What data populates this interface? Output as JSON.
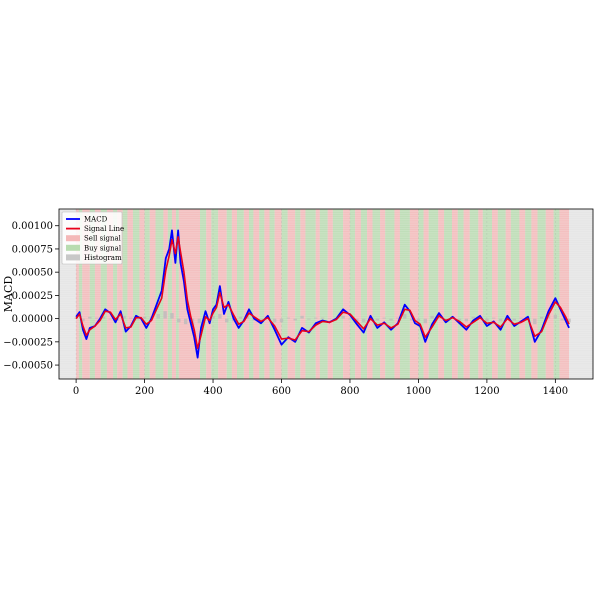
{
  "chart_data": {
    "type": "line",
    "title": "",
    "xlabel": "",
    "ylabel": "MACD",
    "xlim": [
      -50,
      1510
    ],
    "ylim": [
      -0.00065,
      0.00118
    ],
    "x_ticks": [
      0,
      200,
      400,
      600,
      800,
      1000,
      1200,
      1400
    ],
    "x_tick_labels": [
      "0",
      "200",
      "400",
      "600",
      "800",
      "1000",
      "1200",
      "1400"
    ],
    "y_ticks": [
      -0.0005,
      -0.00025,
      0.0,
      0.00025,
      0.0005,
      0.00075,
      0.001
    ],
    "y_tick_labels": [
      "−0.00050",
      "−0.00025",
      "0.00000",
      "0.00025",
      "0.00050",
      "0.00075",
      "0.00100"
    ],
    "grid": true,
    "legend_position": "top-left",
    "legend": [
      {
        "label": "MACD",
        "kind": "line",
        "color": "#0000ff"
      },
      {
        "label": "Signal Line",
        "kind": "line",
        "color": "#e8001c"
      },
      {
        "label": "Sell signal",
        "kind": "patch",
        "color": "#f4b8b8"
      },
      {
        "label": "Buy signal",
        "kind": "patch",
        "color": "#b8dcb0"
      },
      {
        "label": "Histogram",
        "kind": "patch",
        "color": "#c8c8c8"
      }
    ],
    "colors": {
      "macd": "#0000ff",
      "signal": "#e8001c",
      "sell": "#f4b8b8",
      "buy": "#b8dcb0",
      "histogram": "#bcbcbc",
      "outside": "#e6e6e6"
    },
    "data_range": [
      0,
      1440
    ],
    "series": [
      {
        "name": "MACD",
        "x": [
          0,
          10,
          20,
          30,
          40,
          55,
          70,
          85,
          100,
          115,
          130,
          145,
          160,
          175,
          190,
          205,
          220,
          235,
          250,
          262,
          272,
          280,
          290,
          298,
          305,
          315,
          325,
          335,
          345,
          355,
          365,
          378,
          390,
          400,
          410,
          420,
          432,
          445,
          460,
          475,
          490,
          505,
          520,
          540,
          560,
          580,
          600,
          620,
          640,
          660,
          680,
          700,
          720,
          740,
          760,
          780,
          800,
          820,
          840,
          860,
          880,
          900,
          920,
          940,
          960,
          975,
          990,
          1005,
          1020,
          1040,
          1060,
          1080,
          1100,
          1120,
          1140,
          1160,
          1180,
          1200,
          1220,
          1240,
          1260,
          1280,
          1300,
          1320,
          1340,
          1360,
          1380,
          1400,
          1415,
          1430,
          1440
        ],
        "values": [
          2e-05,
          7e-05,
          -0.00012,
          -0.00022,
          -0.0001,
          -8e-05,
          0.0,
          0.0001,
          6e-05,
          -4e-05,
          8e-05,
          -0.00014,
          -8e-05,
          3e-05,
          0.0,
          -0.0001,
          0.0,
          0.00015,
          0.0003,
          0.00065,
          0.00075,
          0.00095,
          0.0006,
          0.00095,
          0.0006,
          0.0004,
          0.0001,
          -5e-05,
          -0.0002,
          -0.00042,
          -0.0001,
          8e-05,
          -5e-05,
          0.0001,
          0.00015,
          0.00035,
          5e-05,
          0.00018,
          0.0,
          -0.0001,
          -2e-05,
          0.0001,
          0.0,
          -5e-05,
          3e-05,
          -0.00012,
          -0.00028,
          -0.0002,
          -0.00025,
          -0.0001,
          -0.00015,
          -5e-05,
          -2e-05,
          -4e-05,
          0.0,
          0.0001,
          4e-05,
          -6e-05,
          -0.00015,
          3e-05,
          -0.0001,
          -4e-05,
          -0.00012,
          -5e-05,
          0.00015,
          8e-05,
          -5e-05,
          -8e-05,
          -0.00025,
          -6e-05,
          6e-05,
          -4e-05,
          2e-05,
          -5e-05,
          -0.00012,
          -2e-05,
          3e-05,
          -8e-05,
          -3e-05,
          -0.00012,
          3e-05,
          -8e-05,
          -3e-05,
          2e-05,
          -0.00025,
          -0.00012,
          8e-05,
          0.00022,
          0.0001,
          -2e-05,
          -0.0001
        ]
      },
      {
        "name": "Signal Line",
        "x": [
          0,
          10,
          20,
          30,
          40,
          55,
          70,
          85,
          100,
          115,
          130,
          145,
          160,
          175,
          190,
          205,
          220,
          235,
          250,
          262,
          272,
          280,
          290,
          298,
          305,
          315,
          325,
          335,
          345,
          355,
          365,
          378,
          390,
          400,
          410,
          420,
          432,
          445,
          460,
          475,
          490,
          505,
          520,
          540,
          560,
          580,
          600,
          620,
          640,
          660,
          680,
          700,
          720,
          740,
          760,
          780,
          800,
          820,
          840,
          860,
          880,
          900,
          920,
          940,
          960,
          975,
          990,
          1005,
          1020,
          1040,
          1060,
          1080,
          1100,
          1120,
          1140,
          1160,
          1180,
          1200,
          1220,
          1240,
          1260,
          1280,
          1300,
          1320,
          1340,
          1360,
          1380,
          1400,
          1415,
          1430,
          1440
        ],
        "values": [
          0.0,
          5e-05,
          -8e-05,
          -0.00018,
          -0.00012,
          -8e-05,
          -2e-05,
          8e-05,
          7e-05,
          -1e-05,
          5e-05,
          -0.0001,
          -9e-05,
          1e-05,
          1e-05,
          -6e-05,
          -2e-05,
          0.0001,
          0.00022,
          0.00052,
          0.00068,
          0.00085,
          0.0007,
          0.00088,
          0.00072,
          0.0005,
          0.0002,
          2e-05,
          -0.00012,
          -0.00032,
          -0.00018,
          2e-05,
          -2e-05,
          6e-05,
          0.00012,
          0.00028,
          0.00012,
          0.00015,
          4e-05,
          -6e-05,
          -3e-05,
          6e-05,
          2e-05,
          -3e-05,
          1e-05,
          -8e-05,
          -0.00022,
          -0.00021,
          -0.00023,
          -0.00013,
          -0.00014,
          -7e-05,
          -3e-05,
          -4e-05,
          -1e-05,
          7e-05,
          5e-05,
          -3e-05,
          -0.00011,
          0.0,
          -7e-05,
          -5e-05,
          -0.0001,
          -6e-05,
          0.0001,
          9e-05,
          -2e-05,
          -6e-05,
          -0.0002,
          -9e-05,
          3e-05,
          -2e-05,
          1e-05,
          -3e-05,
          -9e-05,
          -4e-05,
          1e-05,
          -5e-05,
          -4e-05,
          -9e-05,
          0.0,
          -6e-05,
          -4e-05,
          0.0,
          -0.00019,
          -0.00014,
          4e-05,
          0.00018,
          0.00012,
          2e-05,
          -6e-05
        ]
      }
    ],
    "signal_bands": [
      [
        0,
        8,
        "sell"
      ],
      [
        8,
        18,
        "buy"
      ],
      [
        18,
        40,
        "sell"
      ],
      [
        40,
        55,
        "buy"
      ],
      [
        55,
        72,
        "sell"
      ],
      [
        72,
        90,
        "buy"
      ],
      [
        90,
        108,
        "sell"
      ],
      [
        108,
        120,
        "buy"
      ],
      [
        120,
        136,
        "sell"
      ],
      [
        136,
        150,
        "buy"
      ],
      [
        150,
        166,
        "sell"
      ],
      [
        166,
        185,
        "buy"
      ],
      [
        185,
        200,
        "sell"
      ],
      [
        200,
        215,
        "buy"
      ],
      [
        215,
        232,
        "sell"
      ],
      [
        232,
        255,
        "buy"
      ],
      [
        255,
        268,
        "sell"
      ],
      [
        268,
        280,
        "buy"
      ],
      [
        280,
        292,
        "sell"
      ],
      [
        292,
        300,
        "buy"
      ],
      [
        300,
        362,
        "sell"
      ],
      [
        362,
        380,
        "buy"
      ],
      [
        380,
        395,
        "sell"
      ],
      [
        395,
        415,
        "buy"
      ],
      [
        415,
        440,
        "sell"
      ],
      [
        440,
        455,
        "buy"
      ],
      [
        455,
        470,
        "sell"
      ],
      [
        470,
        490,
        "buy"
      ],
      [
        490,
        505,
        "sell"
      ],
      [
        505,
        518,
        "buy"
      ],
      [
        518,
        535,
        "sell"
      ],
      [
        535,
        550,
        "buy"
      ],
      [
        550,
        565,
        "sell"
      ],
      [
        565,
        580,
        "buy"
      ],
      [
        580,
        600,
        "sell"
      ],
      [
        600,
        618,
        "buy"
      ],
      [
        618,
        640,
        "sell"
      ],
      [
        640,
        655,
        "buy"
      ],
      [
        655,
        670,
        "sell"
      ],
      [
        670,
        700,
        "buy"
      ],
      [
        700,
        712,
        "sell"
      ],
      [
        712,
        735,
        "buy"
      ],
      [
        735,
        750,
        "sell"
      ],
      [
        750,
        780,
        "buy"
      ],
      [
        780,
        800,
        "sell"
      ],
      [
        800,
        815,
        "buy"
      ],
      [
        815,
        832,
        "sell"
      ],
      [
        832,
        850,
        "buy"
      ],
      [
        850,
        866,
        "sell"
      ],
      [
        866,
        888,
        "buy"
      ],
      [
        888,
        903,
        "sell"
      ],
      [
        903,
        930,
        "buy"
      ],
      [
        930,
        946,
        "sell"
      ],
      [
        946,
        975,
        "buy"
      ],
      [
        975,
        1000,
        "sell"
      ],
      [
        1000,
        1015,
        "buy"
      ],
      [
        1015,
        1030,
        "sell"
      ],
      [
        1030,
        1058,
        "buy"
      ],
      [
        1058,
        1075,
        "sell"
      ],
      [
        1075,
        1098,
        "buy"
      ],
      [
        1098,
        1115,
        "sell"
      ],
      [
        1115,
        1132,
        "buy"
      ],
      [
        1132,
        1150,
        "sell"
      ],
      [
        1150,
        1175,
        "buy"
      ],
      [
        1175,
        1188,
        "sell"
      ],
      [
        1188,
        1215,
        "buy"
      ],
      [
        1215,
        1232,
        "sell"
      ],
      [
        1232,
        1255,
        "buy"
      ],
      [
        1255,
        1270,
        "sell"
      ],
      [
        1270,
        1295,
        "buy"
      ],
      [
        1295,
        1312,
        "sell"
      ],
      [
        1312,
        1330,
        "buy"
      ],
      [
        1330,
        1348,
        "sell"
      ],
      [
        1348,
        1372,
        "buy"
      ],
      [
        1372,
        1395,
        "sell"
      ],
      [
        1395,
        1412,
        "buy"
      ],
      [
        1412,
        1440,
        "sell"
      ]
    ],
    "histogram": {
      "x": [
        0,
        20,
        40,
        60,
        80,
        100,
        120,
        140,
        160,
        180,
        200,
        220,
        240,
        260,
        280,
        300,
        320,
        340,
        360,
        380,
        400,
        420,
        440,
        460,
        480,
        500,
        520,
        540,
        560,
        580,
        600,
        620,
        640,
        660,
        680,
        700,
        720,
        740,
        760,
        780,
        800,
        820,
        840,
        860,
        880,
        900,
        920,
        940,
        960,
        980,
        1000,
        1020,
        1040,
        1060,
        1080,
        1100,
        1120,
        1140,
        1160,
        1180,
        1200,
        1220,
        1240,
        1260,
        1280,
        1300,
        1320,
        1340,
        1360,
        1380,
        1400,
        1420,
        1440
      ],
      "values": [
        1e-05,
        -3e-05,
        2e-05,
        1e-05,
        2e-05,
        -1e-05,
        -2e-05,
        3e-05,
        1e-05,
        -1e-05,
        2e-05,
        2e-05,
        5e-05,
        8e-05,
        6e-05,
        -4e-05,
        -6e-05,
        -8e-05,
        -5e-05,
        4e-05,
        3e-05,
        5e-05,
        -4e-05,
        -3e-05,
        2e-05,
        3e-05,
        -2e-05,
        -2e-05,
        2e-05,
        -4e-05,
        -4e-05,
        1e-05,
        -2e-05,
        3e-05,
        -1e-05,
        1e-05,
        1e-05,
        0.0,
        1e-05,
        3e-05,
        -1e-05,
        -3e-05,
        -4e-05,
        2e-05,
        -2e-05,
        1e-05,
        -2e-05,
        1e-05,
        5e-05,
        -2e-05,
        -3e-05,
        -5e-05,
        3e-05,
        3e-05,
        -2e-05,
        1e-05,
        -2e-05,
        -3e-05,
        2e-05,
        2e-05,
        -3e-05,
        1e-05,
        -3e-05,
        3e-05,
        -2e-05,
        1e-05,
        2e-05,
        -6e-05,
        2e-05,
        4e-05,
        4e-05,
        -2e-05,
        -4e-05
      ]
    }
  }
}
